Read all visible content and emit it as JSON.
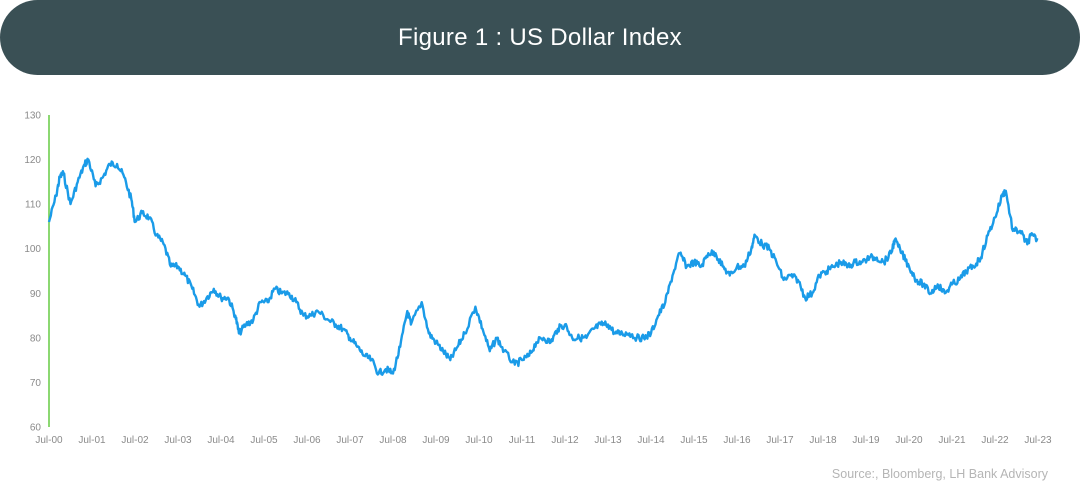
{
  "header": {
    "title": "Figure 1 : US Dollar Index"
  },
  "source": "Source:, Bloomberg, LH Bank Advisory",
  "colors": {
    "banner": "#3a5055",
    "line": "#1a9be8",
    "axis": "#66cc44",
    "tick_text": "#8a8a8a"
  },
  "chart_data": {
    "type": "line",
    "title": "",
    "xlabel": "",
    "ylabel": "",
    "ylim": [
      60,
      130
    ],
    "yticks": [
      130,
      120,
      110,
      100,
      90,
      80,
      70,
      60
    ],
    "xticks": [
      "Jul-00",
      "Jul-01",
      "Jul-02",
      "Jul-03",
      "Jul-04",
      "Jul-05",
      "Jul-06",
      "Jul-07",
      "Jul-08",
      "Jul-09",
      "Jul-10",
      "Jul-11",
      "Jul-12",
      "Jul-13",
      "Jul-14",
      "Jul-15",
      "Jul-16",
      "Jul-17",
      "Jul-18",
      "Jul-19",
      "Jul-20",
      "Jul-21",
      "Jul-22",
      "Jul-23"
    ],
    "x_range": [
      "2000-07",
      "2023-07"
    ],
    "grid": false,
    "legend": "none",
    "series": [
      {
        "name": "",
        "points": [
          [
            "2000-07",
            106
          ],
          [
            "2000-09",
            112
          ],
          [
            "2000-10",
            116
          ],
          [
            "2000-11",
            117
          ],
          [
            "2001-01",
            110
          ],
          [
            "2001-03",
            115
          ],
          [
            "2001-05",
            119
          ],
          [
            "2001-06",
            120
          ],
          [
            "2001-08",
            114
          ],
          [
            "2001-10",
            116
          ],
          [
            "2001-12",
            119
          ],
          [
            "2002-02",
            119
          ],
          [
            "2002-04",
            116
          ],
          [
            "2002-06",
            111
          ],
          [
            "2002-07",
            106
          ],
          [
            "2002-09",
            108
          ],
          [
            "2002-11",
            107
          ],
          [
            "2003-01",
            103
          ],
          [
            "2003-03",
            101
          ],
          [
            "2003-05",
            96
          ],
          [
            "2003-07",
            96
          ],
          [
            "2003-09",
            94
          ],
          [
            "2003-11",
            91
          ],
          [
            "2004-01",
            87
          ],
          [
            "2004-03",
            89
          ],
          [
            "2004-05",
            91
          ],
          [
            "2004-07",
            89
          ],
          [
            "2004-09",
            89
          ],
          [
            "2004-11",
            85
          ],
          [
            "2004-12",
            81
          ],
          [
            "2005-02",
            83
          ],
          [
            "2005-04",
            84
          ],
          [
            "2005-06",
            88
          ],
          [
            "2005-08",
            88
          ],
          [
            "2005-10",
            91
          ],
          [
            "2005-12",
            90
          ],
          [
            "2006-02",
            90
          ],
          [
            "2006-04",
            88
          ],
          [
            "2006-06",
            85
          ],
          [
            "2006-08",
            85
          ],
          [
            "2006-10",
            86
          ],
          [
            "2007-01",
            84
          ],
          [
            "2007-03",
            83
          ],
          [
            "2007-05",
            82
          ],
          [
            "2007-07",
            80
          ],
          [
            "2007-09",
            78
          ],
          [
            "2007-11",
            76
          ],
          [
            "2008-01",
            75
          ],
          [
            "2008-03",
            72
          ],
          [
            "2008-05",
            73
          ],
          [
            "2008-07",
            72
          ],
          [
            "2008-09",
            78
          ],
          [
            "2008-11",
            86
          ],
          [
            "2008-12",
            83
          ],
          [
            "2009-03",
            88
          ],
          [
            "2009-05",
            81
          ],
          [
            "2009-07",
            79
          ],
          [
            "2009-09",
            77
          ],
          [
            "2009-11",
            75
          ],
          [
            "2010-01",
            78
          ],
          [
            "2010-03",
            81
          ],
          [
            "2010-06",
            87
          ],
          [
            "2010-08",
            82
          ],
          [
            "2010-10",
            77
          ],
          [
            "2010-12",
            80
          ],
          [
            "2011-02",
            77
          ],
          [
            "2011-05",
            74
          ],
          [
            "2011-07",
            75
          ],
          [
            "2011-09",
            76
          ],
          [
            "2011-11",
            79
          ],
          [
            "2012-01",
            80
          ],
          [
            "2012-03",
            79
          ],
          [
            "2012-05",
            82
          ],
          [
            "2012-07",
            83
          ],
          [
            "2012-09",
            80
          ],
          [
            "2012-11",
            80
          ],
          [
            "2013-01",
            80
          ],
          [
            "2013-03",
            82
          ],
          [
            "2013-05",
            83
          ],
          [
            "2013-07",
            83
          ],
          [
            "2013-09",
            81
          ],
          [
            "2013-11",
            81
          ],
          [
            "2014-01",
            81
          ],
          [
            "2014-03",
            80
          ],
          [
            "2014-05",
            80
          ],
          [
            "2014-07",
            81
          ],
          [
            "2014-09",
            85
          ],
          [
            "2014-11",
            88
          ],
          [
            "2015-01",
            94
          ],
          [
            "2015-03",
            99
          ],
          [
            "2015-05",
            96
          ],
          [
            "2015-07",
            97
          ],
          [
            "2015-09",
            96
          ],
          [
            "2015-11",
            99
          ],
          [
            "2016-01",
            99
          ],
          [
            "2016-03",
            96
          ],
          [
            "2016-05",
            94
          ],
          [
            "2016-07",
            96
          ],
          [
            "2016-09",
            96
          ],
          [
            "2016-11",
            100
          ],
          [
            "2016-12",
            103
          ],
          [
            "2017-02",
            101
          ],
          [
            "2017-04",
            100
          ],
          [
            "2017-06",
            97
          ],
          [
            "2017-08",
            93
          ],
          [
            "2017-10",
            94
          ],
          [
            "2017-12",
            93
          ],
          [
            "2018-02",
            89
          ],
          [
            "2018-04",
            90
          ],
          [
            "2018-06",
            94
          ],
          [
            "2018-08",
            95
          ],
          [
            "2018-10",
            96
          ],
          [
            "2018-12",
            97
          ],
          [
            "2019-02",
            96
          ],
          [
            "2019-04",
            97
          ],
          [
            "2019-06",
            97
          ],
          [
            "2019-08",
            98
          ],
          [
            "2019-10",
            98
          ],
          [
            "2019-12",
            97
          ],
          [
            "2020-02",
            99
          ],
          [
            "2020-03",
            102
          ],
          [
            "2020-05",
            99
          ],
          [
            "2020-07",
            96
          ],
          [
            "2020-09",
            93
          ],
          [
            "2020-11",
            92
          ],
          [
            "2021-01",
            90
          ],
          [
            "2021-03",
            92
          ],
          [
            "2021-05",
            90
          ],
          [
            "2021-07",
            92
          ],
          [
            "2021-09",
            93
          ],
          [
            "2021-11",
            95
          ],
          [
            "2022-01",
            96
          ],
          [
            "2022-03",
            98
          ],
          [
            "2022-05",
            103
          ],
          [
            "2022-07",
            107
          ],
          [
            "2022-09",
            112
          ],
          [
            "2022-10",
            113
          ],
          [
            "2022-12",
            104
          ],
          [
            "2023-02",
            104
          ],
          [
            "2023-04",
            101
          ],
          [
            "2023-05",
            103
          ],
          [
            "2023-07",
            102
          ]
        ]
      }
    ]
  }
}
